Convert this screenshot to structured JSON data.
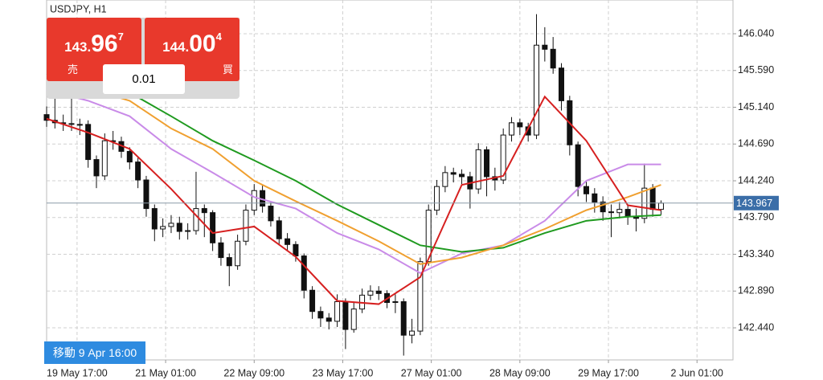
{
  "chart_data": {
    "type": "candlestick",
    "title": "USDJPY, H1",
    "xlim": [
      0,
      248
    ],
    "xticks": [
      {
        "value": 11,
        "label": "19 May 17:00"
      },
      {
        "value": 43,
        "label": "21 May 01:00"
      },
      {
        "value": 75,
        "label": "22 May 09:00"
      },
      {
        "value": 107,
        "label": "23 May 17:00"
      },
      {
        "value": 139,
        "label": "27 May 01:00"
      },
      {
        "value": 171,
        "label": "28 May 09:00"
      },
      {
        "value": 203,
        "label": "29 May 17:00"
      },
      {
        "value": 235,
        "label": "2 Jun 01:00"
      }
    ],
    "ylim": [
      142.047,
      146.453
    ],
    "yticks": [
      {
        "value": 146.04,
        "label": "146.040"
      },
      {
        "value": 145.59,
        "label": "145.590"
      },
      {
        "value": 145.14,
        "label": "145.140"
      },
      {
        "value": 144.69,
        "label": "144.690"
      },
      {
        "value": 144.24,
        "label": "144.240"
      },
      {
        "value": 143.79,
        "label": "143.790"
      },
      {
        "value": 143.34,
        "label": "143.340"
      },
      {
        "value": 142.89,
        "label": "142.890"
      },
      {
        "value": 142.44,
        "label": "142.440"
      }
    ],
    "grid": true,
    "x": [
      0,
      3,
      6,
      9,
      12,
      15,
      18,
      21,
      24,
      27,
      30,
      33,
      36,
      39,
      42,
      45,
      48,
      51,
      54,
      57,
      60,
      63,
      66,
      69,
      72,
      75,
      78,
      81,
      84,
      87,
      90,
      93,
      96,
      99,
      102,
      105,
      108,
      111,
      114,
      117,
      120,
      123,
      126,
      129,
      132,
      135,
      138,
      141,
      144,
      147,
      150,
      153,
      156,
      159,
      162,
      165,
      168,
      171,
      174,
      177,
      180,
      183,
      186,
      189,
      192,
      195,
      198,
      201,
      204,
      207,
      210,
      213,
      216,
      219,
      222
    ],
    "open": [
      145.05,
      144.98,
      144.95,
      144.94,
      144.93,
      144.93,
      144.5,
      144.3,
      144.73,
      144.72,
      144.6,
      144.47,
      144.25,
      143.9,
      143.65,
      143.68,
      143.72,
      143.62,
      143.63,
      143.9,
      143.85,
      143.48,
      143.3,
      143.2,
      143.5,
      143.88,
      144.12,
      143.93,
      143.75,
      143.53,
      143.46,
      143.32,
      142.9,
      142.64,
      142.56,
      142.52,
      142.76,
      142.42,
      142.67,
      142.84,
      142.89,
      142.86,
      142.75,
      142.76,
      142.35,
      142.4,
      143.25,
      143.88,
      144.17,
      144.34,
      144.32,
      144.29,
      144.14,
      144.62,
      144.29,
      144.25,
      144.8,
      144.95,
      144.9,
      144.8,
      145.9,
      145.85,
      145.62,
      145.22,
      144.68,
      144.17,
      144.08,
      143.98,
      143.86,
      143.85,
      143.89,
      143.8,
      143.78,
      144.15,
      143.89
    ],
    "high": [
      145.15,
      145.3,
      145.05,
      145.25,
      145.0,
      144.98,
      144.55,
      144.82,
      144.85,
      144.78,
      144.65,
      144.52,
      144.3,
      143.95,
      143.78,
      143.82,
      143.8,
      143.72,
      144.35,
      143.95,
      143.88,
      143.55,
      143.35,
      143.58,
      143.95,
      144.2,
      144.18,
      143.98,
      143.8,
      143.6,
      143.5,
      143.35,
      142.95,
      142.7,
      142.62,
      142.85,
      142.8,
      142.75,
      142.92,
      142.96,
      142.95,
      142.9,
      142.85,
      142.8,
      142.55,
      143.3,
      143.95,
      144.25,
      144.42,
      144.4,
      144.38,
      144.35,
      144.7,
      144.66,
      144.4,
      144.88,
      145.02,
      145.0,
      144.95,
      146.28,
      146.12,
      146.0,
      145.68,
      145.28,
      144.72,
      144.25,
      144.15,
      144.05,
      143.95,
      143.98,
      143.95,
      143.9,
      144.45,
      144.2,
      144.0
    ],
    "low": [
      144.9,
      144.88,
      144.85,
      144.85,
      144.8,
      144.4,
      144.15,
      144.25,
      144.62,
      144.52,
      144.38,
      144.15,
      143.8,
      143.5,
      143.55,
      143.6,
      143.52,
      143.52,
      143.58,
      143.55,
      143.38,
      143.2,
      142.95,
      143.15,
      143.45,
      143.82,
      143.85,
      143.68,
      143.45,
      143.38,
      143.25,
      142.8,
      142.55,
      142.45,
      142.42,
      142.45,
      142.18,
      142.38,
      142.62,
      142.78,
      142.78,
      142.68,
      142.62,
      142.1,
      142.25,
      142.35,
      143.2,
      143.82,
      144.1,
      144.22,
      144.2,
      143.9,
      144.08,
      144.05,
      144.12,
      144.2,
      144.72,
      144.8,
      144.72,
      144.75,
      145.7,
      145.55,
      145.1,
      144.55,
      144.05,
      143.98,
      143.85,
      143.75,
      143.55,
      143.78,
      143.7,
      143.62,
      143.72,
      143.8,
      143.82
    ],
    "close": [
      144.98,
      144.95,
      144.94,
      144.93,
      144.93,
      144.5,
      144.3,
      144.73,
      144.72,
      144.6,
      144.47,
      144.25,
      143.9,
      143.65,
      143.68,
      143.72,
      143.62,
      143.63,
      143.9,
      143.85,
      143.48,
      143.3,
      143.2,
      143.5,
      143.88,
      144.12,
      143.93,
      143.75,
      143.53,
      143.46,
      143.32,
      142.9,
      142.64,
      142.56,
      142.52,
      142.76,
      142.42,
      142.67,
      142.84,
      142.89,
      142.86,
      142.75,
      142.76,
      142.35,
      142.4,
      143.25,
      143.88,
      144.17,
      144.34,
      144.32,
      144.29,
      144.14,
      144.62,
      144.29,
      144.25,
      144.8,
      144.95,
      144.9,
      144.8,
      145.9,
      145.85,
      145.62,
      145.22,
      144.68,
      144.17,
      144.08,
      143.98,
      143.86,
      143.85,
      143.89,
      143.8,
      143.78,
      144.15,
      143.89,
      143.967
    ],
    "series": [
      {
        "color": "#c98be8",
        "type": "line",
        "x": [
          0,
          15,
          30,
          45,
          60,
          75,
          90,
          105,
          120,
          135,
          150,
          165,
          180,
          195,
          210,
          222
        ],
        "values": [
          145.35,
          145.22,
          145.03,
          144.63,
          144.34,
          144.04,
          143.9,
          143.6,
          143.4,
          143.11,
          143.35,
          143.45,
          143.75,
          144.24,
          144.44,
          144.44
        ]
      },
      {
        "type": "line",
        "x": [
          0,
          15,
          30,
          45,
          60,
          75,
          90,
          105,
          120,
          135,
          150,
          165,
          180,
          195,
          210,
          222
        ],
        "values": [
          145.55,
          145.47,
          145.32,
          145.03,
          144.73,
          144.49,
          144.24,
          143.95,
          143.7,
          143.45,
          143.37,
          143.42,
          143.6,
          143.75,
          143.8,
          143.82
        ],
        "color": "#1f9a1f"
      },
      {
        "type": "line",
        "x": [
          0,
          15,
          30,
          45,
          60,
          75,
          90,
          105,
          120,
          135,
          150,
          165,
          180,
          195,
          210,
          222
        ],
        "values": [
          145.47,
          145.37,
          145.22,
          144.88,
          144.63,
          144.24,
          143.99,
          143.75,
          143.5,
          143.22,
          143.3,
          143.45,
          143.65,
          143.88,
          144.04,
          144.19
        ],
        "color": "#f0a030"
      },
      {
        "type": "line",
        "x": [
          0,
          15,
          30,
          45,
          60,
          75,
          90,
          105,
          120,
          135,
          150,
          165,
          180,
          195,
          210,
          222
        ],
        "values": [
          145.0,
          144.83,
          144.63,
          144.14,
          143.6,
          143.68,
          143.31,
          142.77,
          142.73,
          143.06,
          144.19,
          144.3,
          145.27,
          144.73,
          143.94,
          143.88
        ],
        "color": "#d62020"
      }
    ],
    "last": 143.967
  },
  "panel": {
    "sell": {
      "big_prefix": "143.",
      "big": "96",
      "sup": "7",
      "label": "売"
    },
    "buy": {
      "big_prefix": "144.",
      "big": "00",
      "sup": "4",
      "label": "買"
    },
    "lot": "0.01"
  },
  "footer_label": "移動 9 Apr 16:00"
}
